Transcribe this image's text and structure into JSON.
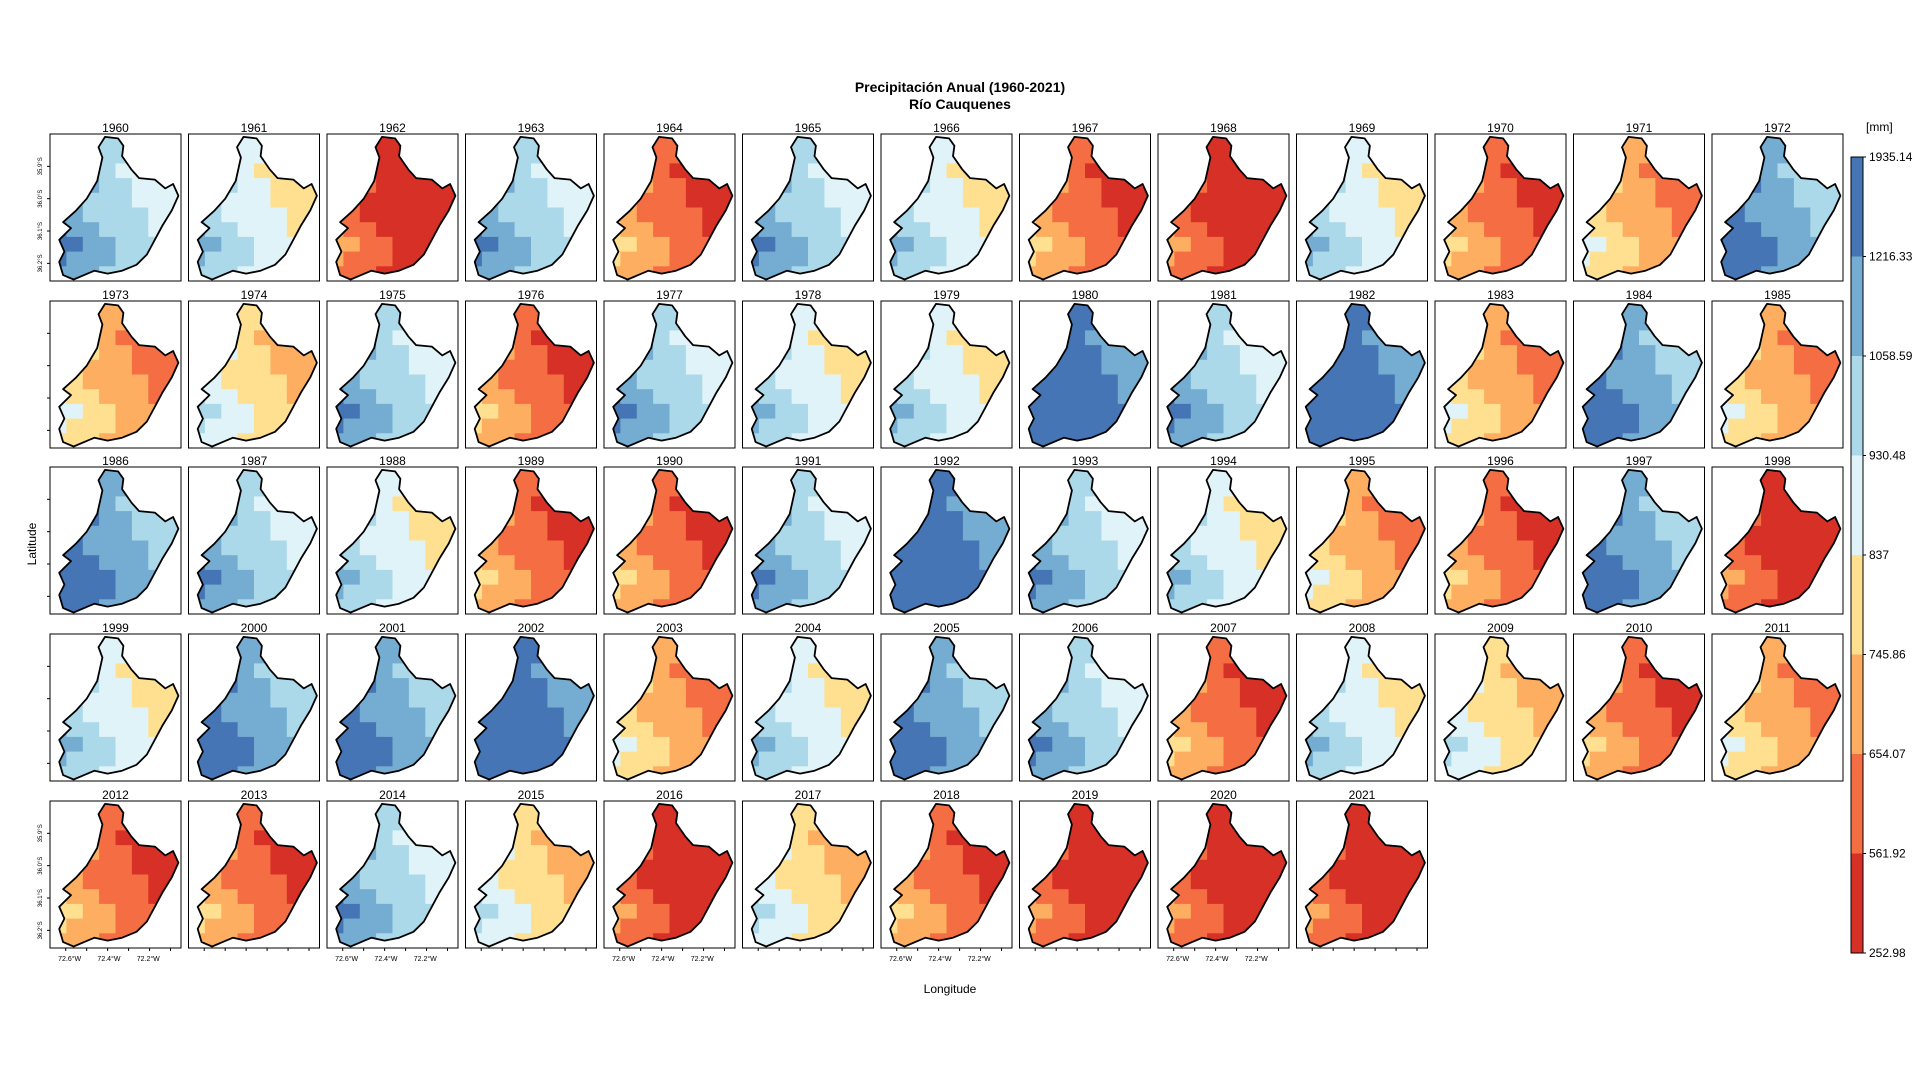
{
  "title": "Precipitación Anual (1960-2021)",
  "subtitle": "Río Cauquenes",
  "xlabel": "Longitude",
  "ylabel": "Latitude",
  "legend": {
    "units": "[mm]",
    "breaks": [
      "1935.14",
      "1216.33",
      "1058.59",
      "930.48",
      "837",
      "745.86",
      "654.07",
      "561.92",
      "252.98"
    ],
    "colors": [
      "#4575b4",
      "#74add1",
      "#abd9e9",
      "#e0f3f8",
      "#fee090",
      "#fdae61",
      "#f46d43",
      "#d73027"
    ]
  },
  "tick_labels": {
    "lon": [
      "72.6°W",
      "72.4°W",
      "72.2°W"
    ],
    "lat": [
      "36.2°S",
      "36.1°S",
      "36.0°S",
      "35.9°S"
    ]
  },
  "panels": [
    {
      "year": "1960",
      "level": 2
    },
    {
      "year": "1961",
      "level": 3
    },
    {
      "year": "1962",
      "level": 7
    },
    {
      "year": "1963",
      "level": 2
    },
    {
      "year": "1964",
      "level": 6
    },
    {
      "year": "1965",
      "level": 2
    },
    {
      "year": "1966",
      "level": 3
    },
    {
      "year": "1967",
      "level": 6
    },
    {
      "year": "1968",
      "level": 7
    },
    {
      "year": "1969",
      "level": 3
    },
    {
      "year": "1970",
      "level": 6
    },
    {
      "year": "1971",
      "level": 5
    },
    {
      "year": "1972",
      "level": 1
    },
    {
      "year": "1973",
      "level": 5
    },
    {
      "year": "1974",
      "level": 4
    },
    {
      "year": "1975",
      "level": 2
    },
    {
      "year": "1976",
      "level": 6
    },
    {
      "year": "1977",
      "level": 2
    },
    {
      "year": "1978",
      "level": 3
    },
    {
      "year": "1979",
      "level": 3
    },
    {
      "year": "1980",
      "level": 0
    },
    {
      "year": "1981",
      "level": 2
    },
    {
      "year": "1982",
      "level": 0
    },
    {
      "year": "1983",
      "level": 5
    },
    {
      "year": "1984",
      "level": 1
    },
    {
      "year": "1985",
      "level": 5
    },
    {
      "year": "1986",
      "level": 1
    },
    {
      "year": "1987",
      "level": 2
    },
    {
      "year": "1988",
      "level": 3
    },
    {
      "year": "1989",
      "level": 6
    },
    {
      "year": "1990",
      "level": 6
    },
    {
      "year": "1991",
      "level": 2
    },
    {
      "year": "1992",
      "level": 0
    },
    {
      "year": "1993",
      "level": 2
    },
    {
      "year": "1994",
      "level": 3
    },
    {
      "year": "1995",
      "level": 5
    },
    {
      "year": "1996",
      "level": 6
    },
    {
      "year": "1997",
      "level": 1
    },
    {
      "year": "1998",
      "level": 7
    },
    {
      "year": "1999",
      "level": 3
    },
    {
      "year": "2000",
      "level": 1
    },
    {
      "year": "2001",
      "level": 1
    },
    {
      "year": "2002",
      "level": 0
    },
    {
      "year": "2003",
      "level": 5
    },
    {
      "year": "2004",
      "level": 3
    },
    {
      "year": "2005",
      "level": 1
    },
    {
      "year": "2006",
      "level": 2
    },
    {
      "year": "2007",
      "level": 6
    },
    {
      "year": "2008",
      "level": 3
    },
    {
      "year": "2009",
      "level": 4
    },
    {
      "year": "2010",
      "level": 6
    },
    {
      "year": "2011",
      "level": 5
    },
    {
      "year": "2012",
      "level": 6
    },
    {
      "year": "2013",
      "level": 6
    },
    {
      "year": "2014",
      "level": 2
    },
    {
      "year": "2015",
      "level": 4
    },
    {
      "year": "2016",
      "level": 7
    },
    {
      "year": "2017",
      "level": 4
    },
    {
      "year": "2018",
      "level": 6
    },
    {
      "year": "2019",
      "level": 7
    },
    {
      "year": "2020",
      "level": 7
    },
    {
      "year": "2021",
      "level": 7
    }
  ]
}
